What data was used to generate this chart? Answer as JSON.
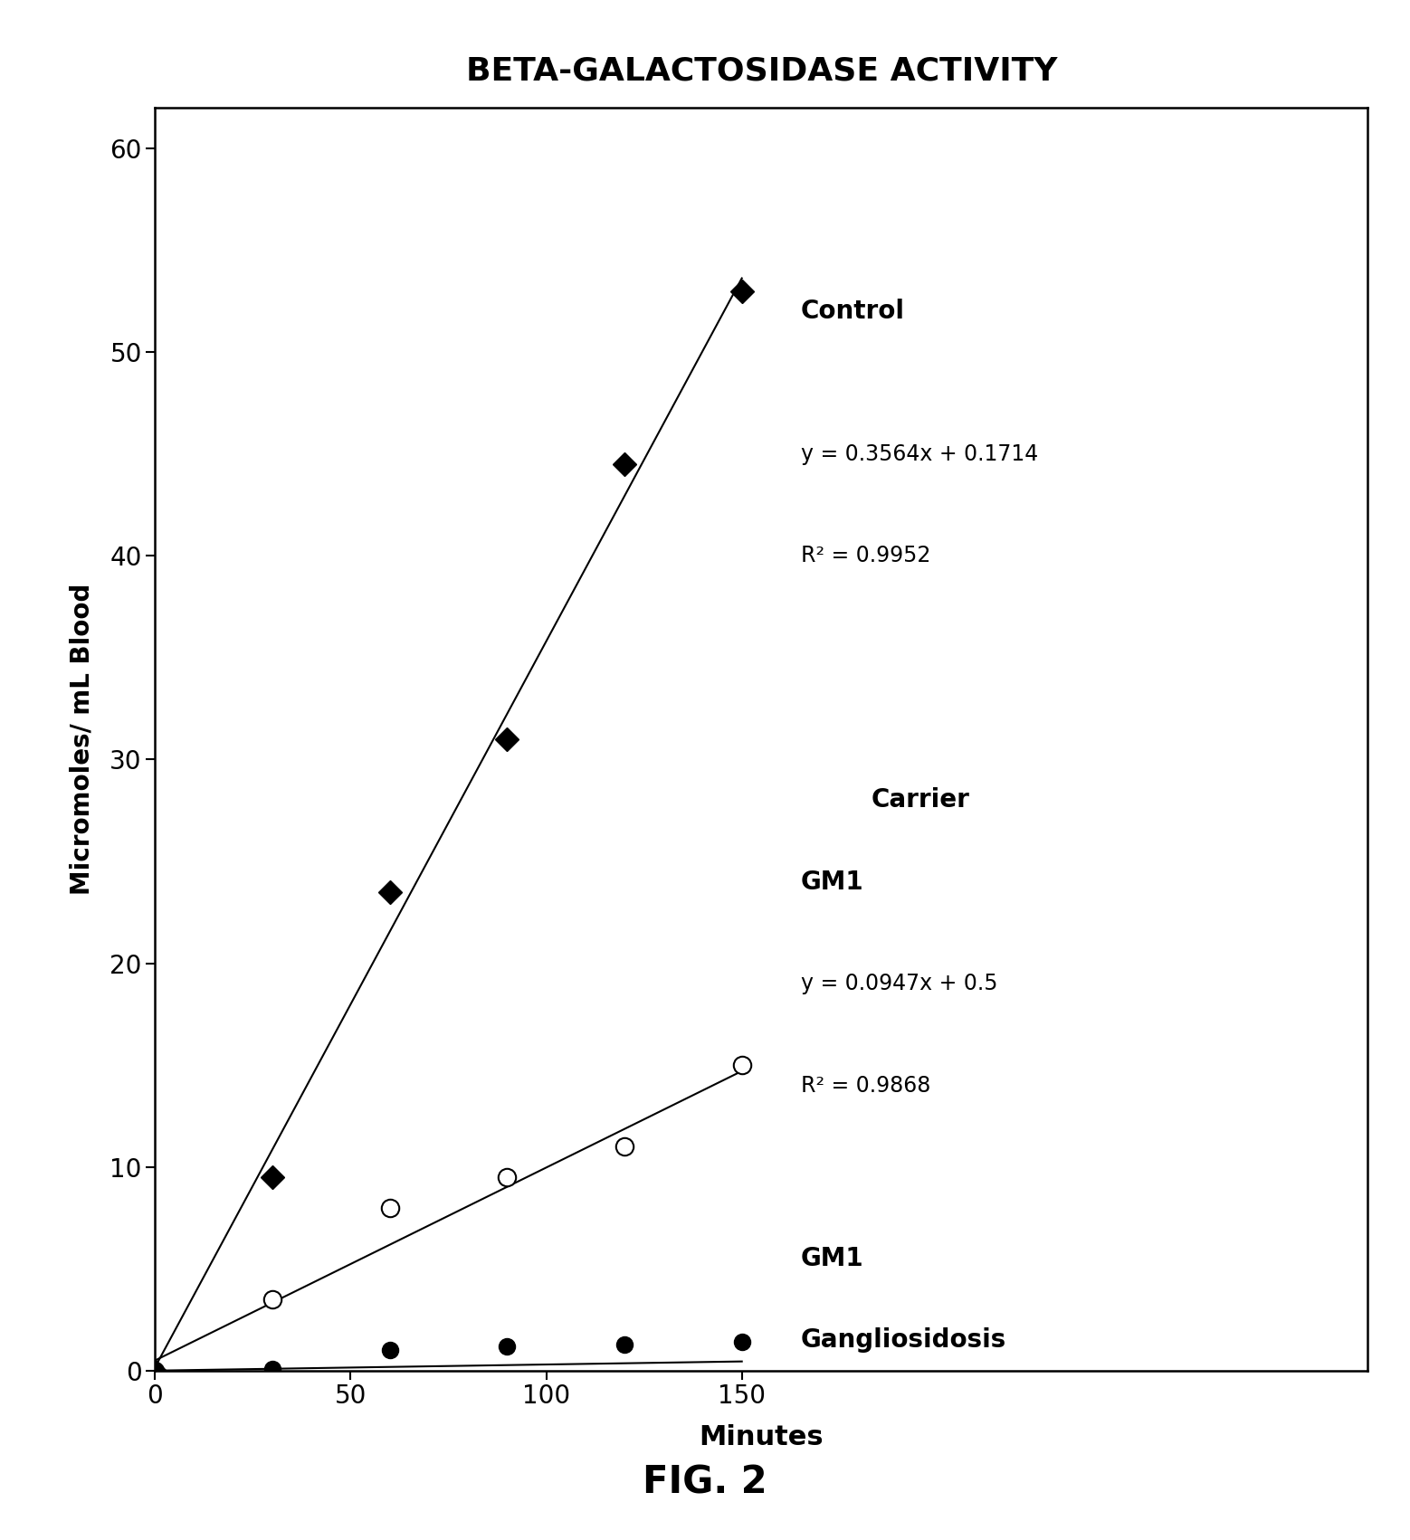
{
  "title": "BETA-GALACTOSIDASE ACTIVITY",
  "xlabel": "Minutes",
  "ylabel": "Micromoles/ mL Blood",
  "xlim": [
    0,
    60
  ],
  "ylim": [
    0,
    60
  ],
  "xticks": [
    0,
    50,
    100,
    150
  ],
  "yticks": [
    0,
    10,
    20,
    30,
    40,
    50,
    60
  ],
  "control": {
    "x": [
      0,
      30,
      60,
      90,
      120,
      150
    ],
    "y": [
      0,
      9.5,
      23.5,
      31,
      44.5,
      53
    ],
    "slope": 0.3564,
    "intercept": 0.1714,
    "label": "Control",
    "eq_label": "y = 0.3564x + 0.1714",
    "r2_label": "R² = 0.9952"
  },
  "carrier": {
    "x": [
      0,
      30,
      60,
      90,
      120,
      150
    ],
    "y": [
      0,
      3.5,
      8,
      9.5,
      11,
      15
    ],
    "slope": 0.0947,
    "intercept": 0.5,
    "label1": "Carrier",
    "label2": "GM1",
    "eq_label": "y = 0.0947x + 0.5",
    "r2_label": "R² = 0.9868"
  },
  "gangliosidosis": {
    "x": [
      0,
      30,
      60,
      90,
      120,
      150
    ],
    "y": [
      0,
      0.1,
      1.0,
      1.2,
      1.3,
      1.4
    ],
    "label1": "GM1",
    "label2": "Gangliosidosis"
  },
  "fig_caption": "FIG. 2",
  "background_color": "#ffffff"
}
